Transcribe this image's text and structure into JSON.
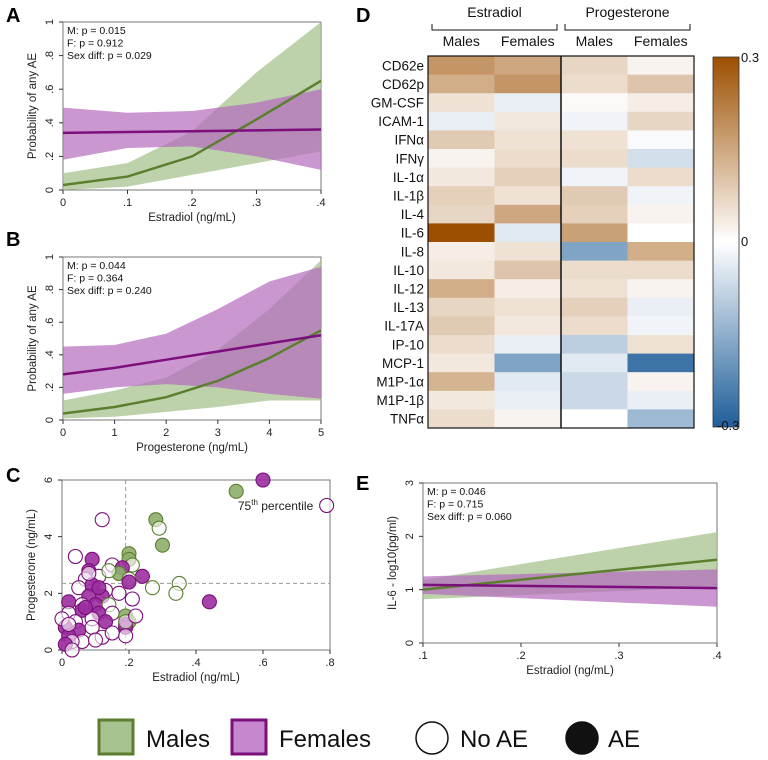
{
  "colors": {
    "male_line": "#5b7f2e",
    "male_band": "#a7c18f",
    "male_marker_fill": "#8eae6b",
    "male_marker_edge": "#5b7f2e",
    "female_line": "#7b0f7c",
    "female_band": "#b36bbd",
    "female_marker_fill": "#9b2fa0",
    "female_marker_edge": "#7b0f7c",
    "heat_pos": "#9c4f00",
    "heat_neg": "#1f5e99"
  },
  "panels": {
    "A": "A",
    "B": "B",
    "C": "C",
    "D": "D",
    "E": "E"
  },
  "chart_data": [
    {
      "id": "A",
      "type": "line",
      "title": "",
      "xlabel": "Estradiol (ng/mL)",
      "ylabel": "Probability of any AE",
      "xlim": [
        0,
        0.4
      ],
      "ylim": [
        0,
        1
      ],
      "xticks": [
        0,
        0.1,
        0.2,
        0.3,
        0.4
      ],
      "xticklabels": [
        "0",
        ".1",
        ".2",
        ".3",
        ".4"
      ],
      "yticks": [
        0,
        0.2,
        0.4,
        0.6,
        0.8,
        1
      ],
      "yticklabels": [
        "0",
        ".2",
        ".4",
        ".6",
        ".8",
        "1"
      ],
      "annotations": [
        "M: p = 0.015",
        "F: p = 0.912",
        "Sex diff: p = 0.029"
      ],
      "series": [
        {
          "name": "Males",
          "x": [
            0,
            0.1,
            0.2,
            0.3,
            0.4
          ],
          "y": [
            0.03,
            0.08,
            0.2,
            0.42,
            0.65
          ],
          "lower": [
            0.0,
            0.02,
            0.09,
            0.16,
            0.23
          ],
          "upper": [
            0.1,
            0.16,
            0.35,
            0.7,
            1.0
          ]
        },
        {
          "name": "Females",
          "x": [
            0,
            0.1,
            0.2,
            0.3,
            0.4
          ],
          "y": [
            0.34,
            0.345,
            0.35,
            0.355,
            0.36
          ],
          "lower": [
            0.18,
            0.25,
            0.26,
            0.2,
            0.12
          ],
          "upper": [
            0.49,
            0.46,
            0.47,
            0.52,
            0.6
          ]
        }
      ]
    },
    {
      "id": "B",
      "type": "line",
      "title": "",
      "xlabel": "Progesterone (ng/mL)",
      "ylabel": "Probability of any AE",
      "xlim": [
        0,
        5
      ],
      "ylim": [
        0,
        1
      ],
      "xticks": [
        0,
        1,
        2,
        3,
        4,
        5
      ],
      "xticklabels": [
        "0",
        "1",
        "2",
        "3",
        "4",
        "5"
      ],
      "yticks": [
        0,
        0.2,
        0.4,
        0.6,
        0.8,
        1
      ],
      "yticklabels": [
        "0",
        ".2",
        ".4",
        ".6",
        ".8",
        "1"
      ],
      "annotations": [
        "M: p = 0.044",
        "F: p = 0.364",
        "Sex diff: p = 0.240"
      ],
      "series": [
        {
          "name": "Males",
          "x": [
            0,
            1,
            2,
            3,
            4,
            5
          ],
          "y": [
            0.04,
            0.08,
            0.14,
            0.24,
            0.38,
            0.55
          ],
          "lower": [
            0.01,
            0.02,
            0.05,
            0.08,
            0.12,
            0.12
          ],
          "upper": [
            0.12,
            0.18,
            0.26,
            0.43,
            0.68,
            0.98
          ]
        },
        {
          "name": "Females",
          "x": [
            0,
            1,
            2,
            3,
            4,
            5
          ],
          "y": [
            0.28,
            0.32,
            0.37,
            0.42,
            0.47,
            0.52
          ],
          "lower": [
            0.16,
            0.2,
            0.22,
            0.2,
            0.16,
            0.13
          ],
          "upper": [
            0.45,
            0.46,
            0.53,
            0.68,
            0.85,
            0.94
          ]
        }
      ]
    },
    {
      "id": "C",
      "type": "scatter",
      "title": "",
      "xlabel": "Estradiol (ng/mL)",
      "ylabel": "Progesterone (ng/mL)",
      "xlim": [
        0,
        0.8
      ],
      "ylim": [
        0,
        6
      ],
      "xticks": [
        0,
        0.2,
        0.4,
        0.6,
        0.8
      ],
      "xticklabels": [
        "0",
        ".2",
        ".4",
        ".6",
        ".8"
      ],
      "yticks": [
        0,
        2,
        4,
        6
      ],
      "yticklabels": [
        "0",
        "2",
        "4",
        "6"
      ],
      "refline_x": 0.19,
      "refline_y": 2.35,
      "annotation": {
        "pre": "75",
        "sup": "th",
        "post": " percentile"
      },
      "points": [
        {
          "x": 0.52,
          "y": 5.6,
          "sex": "M",
          "ae": true
        },
        {
          "x": 0.6,
          "y": 6.0,
          "sex": "F",
          "ae": true
        },
        {
          "x": 0.79,
          "y": 5.1,
          "sex": "F",
          "ae": false
        },
        {
          "x": 0.28,
          "y": 4.6,
          "sex": "M",
          "ae": true
        },
        {
          "x": 0.29,
          "y": 4.3,
          "sex": "M",
          "ae": false
        },
        {
          "x": 0.12,
          "y": 4.6,
          "sex": "F",
          "ae": false
        },
        {
          "x": 0.3,
          "y": 3.7,
          "sex": "M",
          "ae": true
        },
        {
          "x": 0.2,
          "y": 3.4,
          "sex": "M",
          "ae": true
        },
        {
          "x": 0.2,
          "y": 3.2,
          "sex": "M",
          "ae": true
        },
        {
          "x": 0.21,
          "y": 3.0,
          "sex": "M",
          "ae": false
        },
        {
          "x": 0.09,
          "y": 3.2,
          "sex": "F",
          "ae": true
        },
        {
          "x": 0.04,
          "y": 3.3,
          "sex": "F",
          "ae": false
        },
        {
          "x": 0.15,
          "y": 3.0,
          "sex": "F",
          "ae": false
        },
        {
          "x": 0.18,
          "y": 2.9,
          "sex": "F",
          "ae": true
        },
        {
          "x": 0.08,
          "y": 2.8,
          "sex": "F",
          "ae": true
        },
        {
          "x": 0.11,
          "y": 2.6,
          "sex": "F",
          "ae": false
        },
        {
          "x": 0.17,
          "y": 2.7,
          "sex": "M",
          "ae": true
        },
        {
          "x": 0.24,
          "y": 2.6,
          "sex": "F",
          "ae": true
        },
        {
          "x": 0.07,
          "y": 2.5,
          "sex": "F",
          "ae": false
        },
        {
          "x": 0.2,
          "y": 2.5,
          "sex": "M",
          "ae": false
        },
        {
          "x": 0.35,
          "y": 2.35,
          "sex": "M",
          "ae": false
        },
        {
          "x": 0.34,
          "y": 2.0,
          "sex": "M",
          "ae": false
        },
        {
          "x": 0.27,
          "y": 2.2,
          "sex": "M",
          "ae": false
        },
        {
          "x": 0.05,
          "y": 2.2,
          "sex": "F",
          "ae": false
        },
        {
          "x": 0.09,
          "y": 2.3,
          "sex": "F",
          "ae": true
        },
        {
          "x": 0.13,
          "y": 2.1,
          "sex": "F",
          "ae": false
        },
        {
          "x": 0.17,
          "y": 2.0,
          "sex": "F",
          "ae": false
        },
        {
          "x": 0.12,
          "y": 1.9,
          "sex": "F",
          "ae": true
        },
        {
          "x": 0.08,
          "y": 1.9,
          "sex": "F",
          "ae": true
        },
        {
          "x": 0.21,
          "y": 1.8,
          "sex": "F",
          "ae": false
        },
        {
          "x": 0.02,
          "y": 1.7,
          "sex": "F",
          "ae": true
        },
        {
          "x": 0.06,
          "y": 1.6,
          "sex": "F",
          "ae": false
        },
        {
          "x": 0.1,
          "y": 1.6,
          "sex": "F",
          "ae": true
        },
        {
          "x": 0.14,
          "y": 1.6,
          "sex": "M",
          "ae": false
        },
        {
          "x": 0.44,
          "y": 1.7,
          "sex": "F",
          "ae": true
        },
        {
          "x": 0.02,
          "y": 1.3,
          "sex": "F",
          "ae": false
        },
        {
          "x": 0.06,
          "y": 1.4,
          "sex": "F",
          "ae": true
        },
        {
          "x": 0.11,
          "y": 1.3,
          "sex": "F",
          "ae": true
        },
        {
          "x": 0.15,
          "y": 1.3,
          "sex": "F",
          "ae": false
        },
        {
          "x": 0.19,
          "y": 1.2,
          "sex": "M",
          "ae": true
        },
        {
          "x": 0.2,
          "y": 1.0,
          "sex": "M",
          "ae": true
        },
        {
          "x": 0.19,
          "y": 0.9,
          "sex": "F",
          "ae": true
        },
        {
          "x": 0.04,
          "y": 1.0,
          "sex": "F",
          "ae": false
        },
        {
          "x": 0.09,
          "y": 1.1,
          "sex": "F",
          "ae": false
        },
        {
          "x": 0.13,
          "y": 1.0,
          "sex": "F",
          "ae": true
        },
        {
          "x": 0.01,
          "y": 0.8,
          "sex": "F",
          "ae": true
        },
        {
          "x": 0.05,
          "y": 0.7,
          "sex": "F",
          "ae": true
        },
        {
          "x": 0.09,
          "y": 0.8,
          "sex": "F",
          "ae": false
        },
        {
          "x": 0.02,
          "y": 0.5,
          "sex": "F",
          "ae": true
        },
        {
          "x": 0.12,
          "y": 0.45,
          "sex": "F",
          "ae": false
        },
        {
          "x": 0.06,
          "y": 0.3,
          "sex": "F",
          "ae": false
        },
        {
          "x": 0.03,
          "y": 0.3,
          "sex": "F",
          "ae": false
        },
        {
          "x": 0.19,
          "y": 0.8,
          "sex": "F",
          "ae": true
        },
        {
          "x": 0.19,
          "y": 1.0,
          "sex": "M",
          "ae": false
        },
        {
          "x": 0.1,
          "y": 0.35,
          "sex": "F",
          "ae": false
        },
        {
          "x": 0.19,
          "y": 0.5,
          "sex": "F",
          "ae": false
        },
        {
          "x": 0.15,
          "y": 0.6,
          "sex": "F",
          "ae": false
        },
        {
          "x": 0.22,
          "y": 1.2,
          "sex": "F",
          "ae": false
        },
        {
          "x": 0.01,
          "y": 0.2,
          "sex": "F",
          "ae": true
        },
        {
          "x": 0.03,
          "y": 0.0,
          "sex": "F",
          "ae": false
        },
        {
          "x": 0.07,
          "y": 1.5,
          "sex": "F",
          "ae": true
        },
        {
          "x": 0.2,
          "y": 2.4,
          "sex": "F",
          "ae": true
        },
        {
          "x": 0.14,
          "y": 2.8,
          "sex": "M",
          "ae": false
        },
        {
          "x": 0.08,
          "y": 2.7,
          "sex": "F",
          "ae": false
        },
        {
          "x": 0.11,
          "y": 2.2,
          "sex": "F",
          "ae": true
        },
        {
          "x": 0.0,
          "y": 1.1,
          "sex": "F",
          "ae": false
        },
        {
          "x": 0.02,
          "y": 0.9,
          "sex": "F",
          "ae": false
        }
      ]
    },
    {
      "id": "D",
      "type": "heatmap",
      "title": "",
      "groups": [
        "Estradiol",
        "Progesterone"
      ],
      "columns": [
        "Males",
        "Females",
        "Males",
        "Females"
      ],
      "rows": [
        "CD62e",
        "CD62p",
        "GM-CSF",
        "ICAM-1",
        "IFNα",
        "IFNγ",
        "IL-1α",
        "IL-1β",
        "IL-4",
        "IL-6",
        "IL-8",
        "IL-10",
        "IL-12",
        "IL-13",
        "IL-17A",
        "IP-10",
        "MCP-1",
        "M1P-1α",
        "M1P-1β",
        "TNFα"
      ],
      "values": [
        [
          0.18,
          0.15,
          0.07,
          0.02
        ],
        [
          0.14,
          0.18,
          0.06,
          0.1
        ],
        [
          0.05,
          -0.03,
          0.01,
          0.03
        ],
        [
          -0.03,
          0.04,
          -0.02,
          0.07
        ],
        [
          0.09,
          0.05,
          0.05,
          -0.01
        ],
        [
          0.02,
          0.06,
          0.06,
          -0.06
        ],
        [
          0.04,
          0.08,
          -0.02,
          0.06
        ],
        [
          0.08,
          0.05,
          0.09,
          -0.02
        ],
        [
          0.07,
          0.15,
          0.08,
          0.02
        ],
        [
          0.3,
          -0.04,
          0.16,
          0.0
        ],
        [
          0.03,
          0.05,
          -0.17,
          0.14
        ],
        [
          0.04,
          0.1,
          0.06,
          0.06
        ],
        [
          0.14,
          0.03,
          0.05,
          0.02
        ],
        [
          0.07,
          0.05,
          0.08,
          -0.03
        ],
        [
          0.09,
          0.04,
          0.06,
          -0.02
        ],
        [
          0.06,
          -0.03,
          -0.09,
          0.05
        ],
        [
          0.04,
          -0.17,
          -0.04,
          -0.26
        ],
        [
          0.13,
          -0.04,
          -0.07,
          0.02
        ],
        [
          0.04,
          -0.03,
          -0.07,
          -0.03
        ],
        [
          0.06,
          0.02,
          0.0,
          -0.13
        ]
      ],
      "vmin": -0.3,
      "vmax": 0.3,
      "colorbar_ticks": [
        "0.3",
        "0",
        "-0.3"
      ]
    },
    {
      "id": "E",
      "type": "line",
      "title": "",
      "xlabel": "Estradiol (ng/mL)",
      "ylabel": "IL-6 - log10(pg/ml)",
      "xlim": [
        0.1,
        0.4
      ],
      "ylim": [
        0,
        3
      ],
      "xticks": [
        0.1,
        0.2,
        0.3,
        0.4
      ],
      "xticklabels": [
        ".1",
        ".2",
        ".3",
        ".4"
      ],
      "yticks": [
        0,
        1,
        2,
        3
      ],
      "yticklabels": [
        "0",
        "1",
        "2",
        "3"
      ],
      "annotations": [
        "M: p = 0.046",
        "F:  p = 0.715",
        "Sex diff: p = 0.060"
      ],
      "series": [
        {
          "name": "Males",
          "x": [
            0.1,
            0.4
          ],
          "y": [
            1.0,
            1.56
          ],
          "lower": [
            0.82,
            1.05
          ],
          "upper": [
            1.18,
            2.08
          ],
          "mid": [
            0.25,
            1.2,
            1.15,
            1.33
          ]
        },
        {
          "name": "Females",
          "x": [
            0.1,
            0.4
          ],
          "y": [
            1.09,
            1.03
          ],
          "lower": [
            0.92,
            0.68
          ],
          "upper": [
            1.25,
            1.38
          ],
          "mid": [
            0.25,
            1.06,
            0.98,
            1.14
          ]
        }
      ]
    }
  ],
  "legend": {
    "males": "Males",
    "females": "Females",
    "no_ae": "No AE",
    "ae": "AE"
  }
}
